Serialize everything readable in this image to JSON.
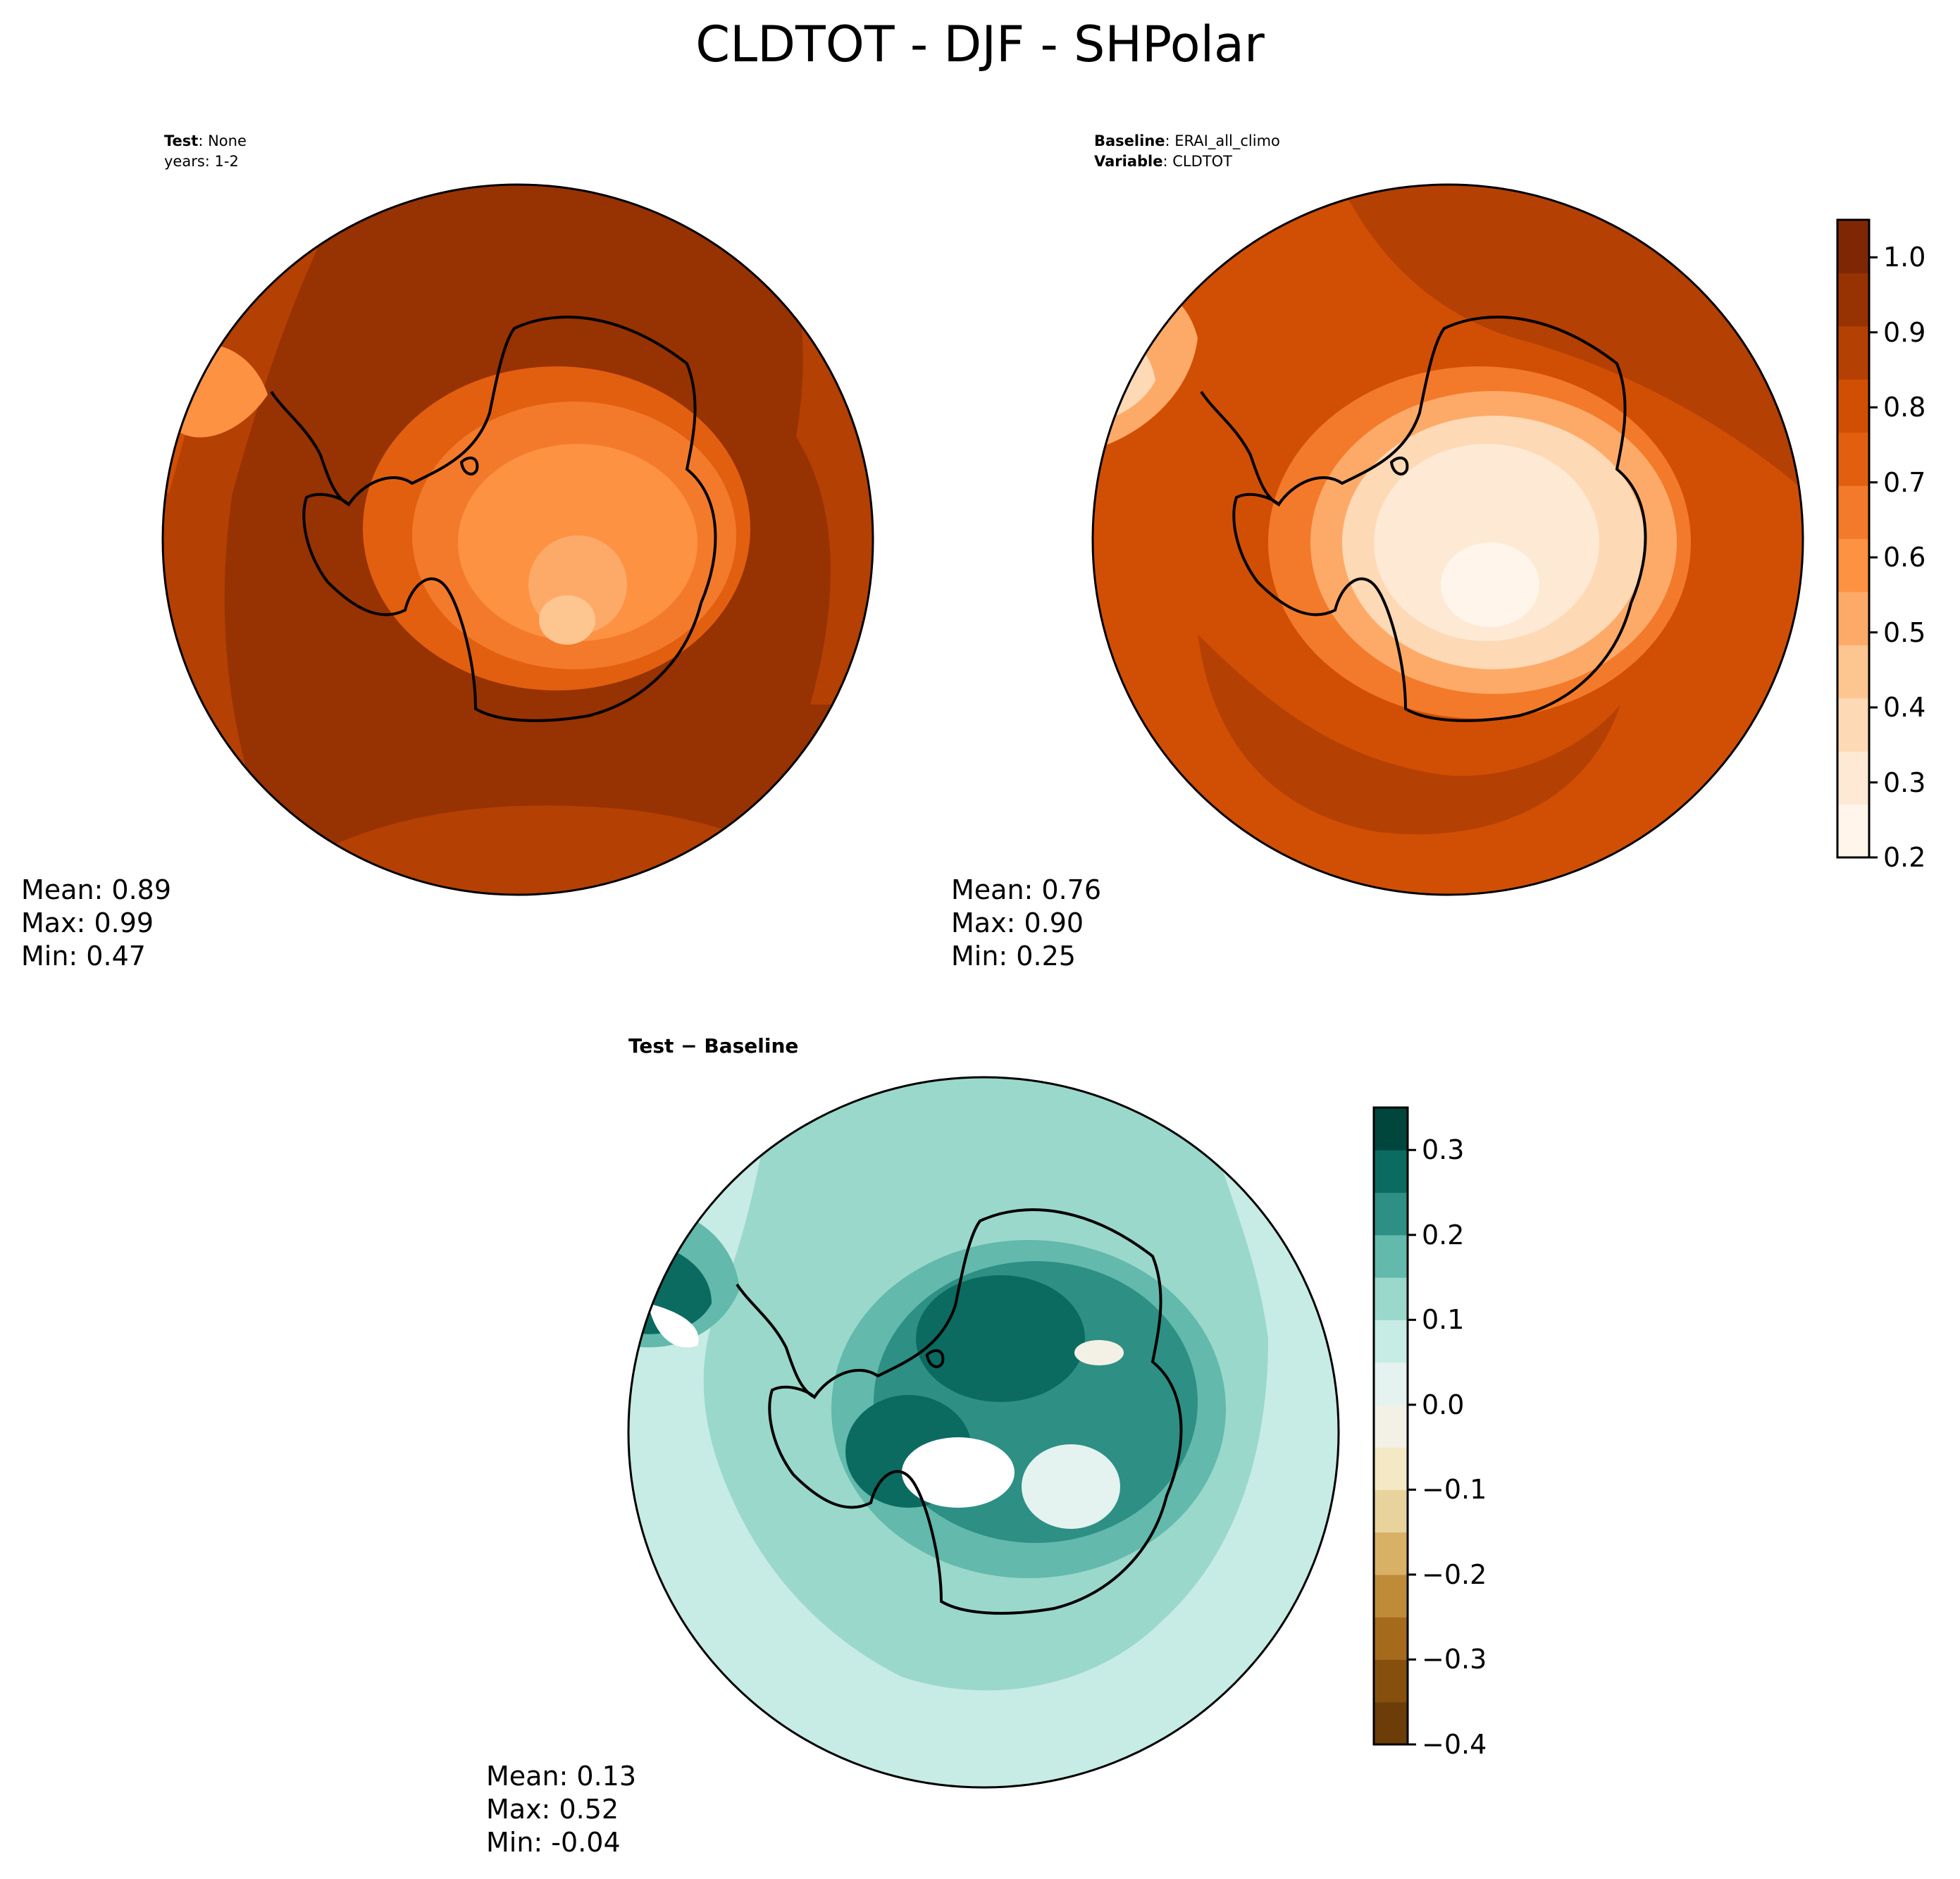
{
  "figure": {
    "title": "CLDTOT - DJF - SHPolar"
  },
  "panels": {
    "test": {
      "label_bold": "Test",
      "label_value": ": None",
      "line2": "years: 1-2",
      "stats": {
        "mean": "Mean:  0.89",
        "max": "Max:  0.99",
        "min": "Min:  0.47"
      }
    },
    "baseline": {
      "label_bold": "Baseline",
      "label_value": ": ERAI_all_climo",
      "var_bold": "Variable",
      "var_value": ": CLDTOT",
      "stats": {
        "mean": "Mean:  0.76",
        "max": "Max:  0.90",
        "min": "Min:  0.25"
      }
    },
    "diff": {
      "label": "Test − Baseline",
      "stats": {
        "mean": "Mean:  0.13",
        "max": "Max:  0.52",
        "min": "Min: -0.04"
      }
    }
  },
  "colorbars": {
    "main": {
      "ticks": [
        "0.2",
        "0.3",
        "0.4",
        "0.5",
        "0.6",
        "0.7",
        "0.8",
        "0.9",
        "1.0"
      ],
      "colors": [
        "#fff5eb",
        "#fee9d4",
        "#fdd9b5",
        "#fdc590",
        "#fdaa69",
        "#fd9243",
        "#f37a2a",
        "#e25f10",
        "#d14f04",
        "#b54003",
        "#973203",
        "#7f2704"
      ]
    },
    "diff": {
      "ticks": [
        "−0.4",
        "−0.3",
        "−0.2",
        "−0.1",
        "0.0",
        "0.1",
        "0.2",
        "0.3"
      ],
      "colors": [
        "#6c3d08",
        "#874f0e",
        "#a56a1c",
        "#c08b39",
        "#d8b166",
        "#e9d39d",
        "#f5e9c5",
        "#f3f1e6",
        "#e4f3f0",
        "#c7ebe5",
        "#9ad8cb",
        "#62b9ac",
        "#2e8f84",
        "#0b6b61",
        "#01463c"
      ]
    }
  },
  "chart_data": {
    "type": "heatmap",
    "title": "CLDTOT - DJF - SHPolar",
    "panels": [
      {
        "name": "Test",
        "mean": 0.89,
        "max": 0.99,
        "min": 0.47
      },
      {
        "name": "Baseline",
        "mean": 0.76,
        "max": 0.9,
        "min": 0.25
      },
      {
        "name": "Test − Baseline",
        "mean": 0.13,
        "max": 0.52,
        "min": -0.04
      }
    ],
    "colorbar_ranges": {
      "main": [
        0.2,
        1.05
      ],
      "diff": [
        -0.4,
        0.35
      ]
    }
  }
}
